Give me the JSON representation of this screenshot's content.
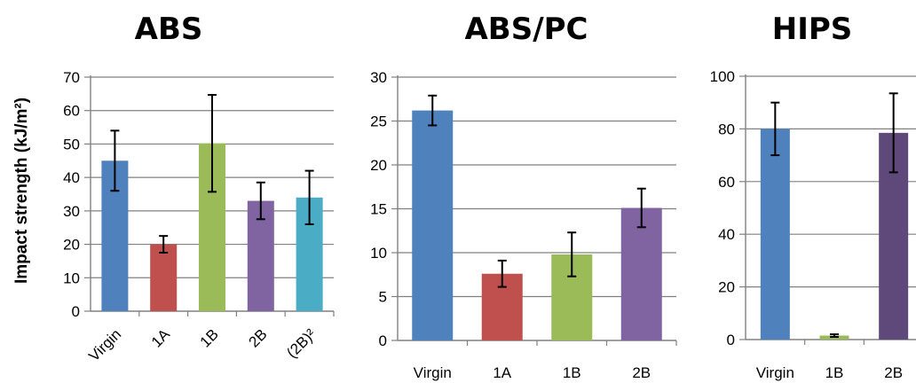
{
  "y_axis_label": "Impact strength (kJ/m²)",
  "colors": {
    "virgin": "#4f81bd",
    "1A": "#c0504d",
    "1B": "#9bbb59",
    "2B": "#8064a2",
    "(2B)2": "#4bacc6",
    "2B_dark": "#5f497a",
    "grid": "#808080"
  },
  "chart_data": [
    {
      "type": "bar",
      "title": "ABS",
      "categories": [
        "Virgin",
        "1A",
        "1B",
        "2B",
        "(2B)²"
      ],
      "values": [
        45,
        20,
        50.2,
        33,
        34
      ],
      "error": [
        9,
        2.5,
        14.5,
        5.5,
        8
      ],
      "bar_colors": [
        "#4f81bd",
        "#c0504d",
        "#9bbb59",
        "#8064a2",
        "#4bacc6"
      ],
      "ylim": [
        0,
        70
      ],
      "yticks": [
        0,
        10,
        20,
        30,
        40,
        50,
        60,
        70
      ],
      "ylabel": "Impact strength (kJ/m²)",
      "xlabel": "",
      "grid": true,
      "tick_labels_rotated": true
    },
    {
      "type": "bar",
      "title": "ABS/PC",
      "categories": [
        "Virgin",
        "1A",
        "1B",
        "2B"
      ],
      "values": [
        26.2,
        7.6,
        9.8,
        15.1
      ],
      "error": [
        1.7,
        1.5,
        2.5,
        2.2
      ],
      "bar_colors": [
        "#4f81bd",
        "#c0504d",
        "#9bbb59",
        "#8064a2"
      ],
      "ylim": [
        0,
        30
      ],
      "yticks": [
        0,
        5,
        10,
        15,
        20,
        25,
        30
      ],
      "ylabel": "",
      "xlabel": "",
      "grid": true,
      "tick_labels_rotated": false
    },
    {
      "type": "bar",
      "title": "HIPS",
      "categories": [
        "Virgin",
        "1B",
        "2B"
      ],
      "values": [
        80,
        1.5,
        78.5
      ],
      "error": [
        10,
        0.5,
        15
      ],
      "bar_colors": [
        "#4f81bd",
        "#9bbb59",
        "#5f497a"
      ],
      "ylim": [
        0,
        100
      ],
      "yticks": [
        0,
        20,
        40,
        60,
        80,
        100
      ],
      "ylabel": "",
      "xlabel": "",
      "grid": true,
      "tick_labels_rotated": false
    }
  ]
}
